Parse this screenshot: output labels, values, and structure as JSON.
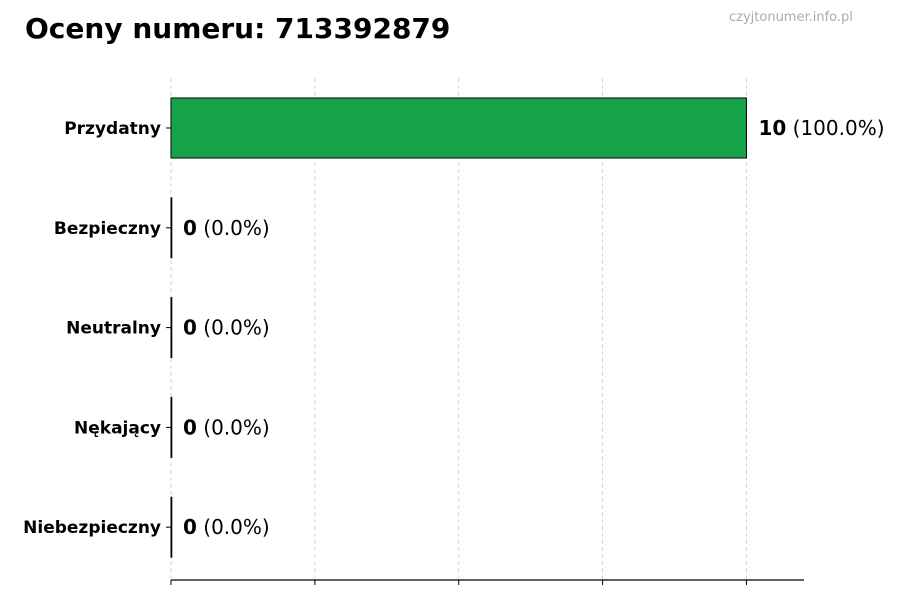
{
  "watermark": "czyjtonumer.info.pl",
  "chart_data": {
    "type": "bar",
    "orientation": "horizontal",
    "title": "Oceny numeru: 713392879",
    "categories": [
      "Przydatny",
      "Bezpieczny",
      "Neutralny",
      "Nękający",
      "Niebezpieczny"
    ],
    "values": [
      10,
      0,
      0,
      0,
      0
    ],
    "percent_labels": [
      "(100.0%)",
      "(0.0%)",
      "(0.0%)",
      "(0.0%)",
      "(0.0%)"
    ],
    "xlim": [
      0,
      11
    ],
    "xticks": [
      0,
      2.5,
      5,
      7.5,
      10
    ],
    "xtick_labels_shown": false,
    "grid": "x-dashed",
    "bar_color": "#16a34a",
    "bar_edge_color": "#000000"
  }
}
